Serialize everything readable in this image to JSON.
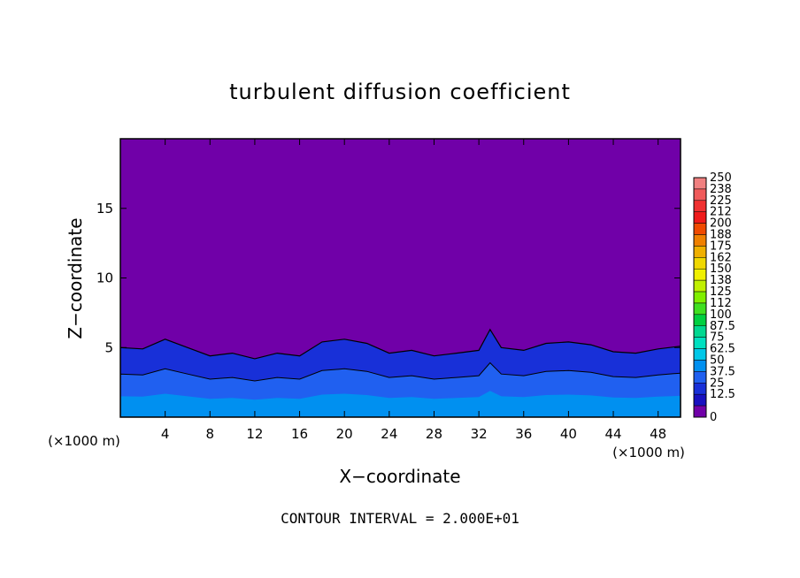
{
  "chart_data": {
    "type": "heatmap",
    "title": "turbulent diffusion coefficient",
    "xlabel": "X−coordinate",
    "ylabel": "Z−coordinate",
    "x_unit": "(×1000 m)",
    "y_unit": "(×1000 m)",
    "xlim": [
      0,
      50
    ],
    "ylim": [
      0,
      20
    ],
    "x_ticks": [
      4,
      8,
      12,
      16,
      20,
      24,
      28,
      32,
      36,
      40,
      44,
      48
    ],
    "y_ticks": [
      5,
      10,
      15
    ],
    "contour_interval": "CONTOUR INTERVAL = 2.000E+01",
    "turbulent_layer_top": [
      {
        "x": 0,
        "z": 5.0
      },
      {
        "x": 2,
        "z": 4.9
      },
      {
        "x": 4,
        "z": 5.6
      },
      {
        "x": 6,
        "z": 5.0
      },
      {
        "x": 8,
        "z": 4.4
      },
      {
        "x": 10,
        "z": 4.6
      },
      {
        "x": 12,
        "z": 4.2
      },
      {
        "x": 14,
        "z": 4.6
      },
      {
        "x": 16,
        "z": 4.4
      },
      {
        "x": 18,
        "z": 5.4
      },
      {
        "x": 20,
        "z": 5.6
      },
      {
        "x": 22,
        "z": 5.3
      },
      {
        "x": 24,
        "z": 4.6
      },
      {
        "x": 26,
        "z": 4.8
      },
      {
        "x": 28,
        "z": 4.4
      },
      {
        "x": 30,
        "z": 4.6
      },
      {
        "x": 32,
        "z": 4.8
      },
      {
        "x": 33,
        "z": 6.3
      },
      {
        "x": 34,
        "z": 5.0
      },
      {
        "x": 36,
        "z": 4.8
      },
      {
        "x": 38,
        "z": 5.3
      },
      {
        "x": 40,
        "z": 5.4
      },
      {
        "x": 42,
        "z": 5.2
      },
      {
        "x": 44,
        "z": 4.7
      },
      {
        "x": 46,
        "z": 4.6
      },
      {
        "x": 48,
        "z": 4.9
      },
      {
        "x": 50,
        "z": 5.1
      }
    ],
    "colorbar": {
      "labels": [
        "250",
        "238",
        "225",
        "212",
        "200",
        "188",
        "175",
        "162",
        "150",
        "138",
        "125",
        "112",
        "100",
        "87.5",
        "75",
        "62.5",
        "50",
        "37.5",
        "25",
        "12.5",
        "0"
      ],
      "colors": [
        "#f08080",
        "#f05a5a",
        "#f03030",
        "#f01a1a",
        "#f04a00",
        "#f08000",
        "#f0b000",
        "#f0d800",
        "#f0f000",
        "#c0f000",
        "#80f000",
        "#40e020",
        "#00d040",
        "#00d890",
        "#00e0c0",
        "#00c8e8",
        "#0090f0",
        "#2060f0",
        "#1830d8",
        "#1810c0",
        "#7000a8"
      ]
    }
  }
}
